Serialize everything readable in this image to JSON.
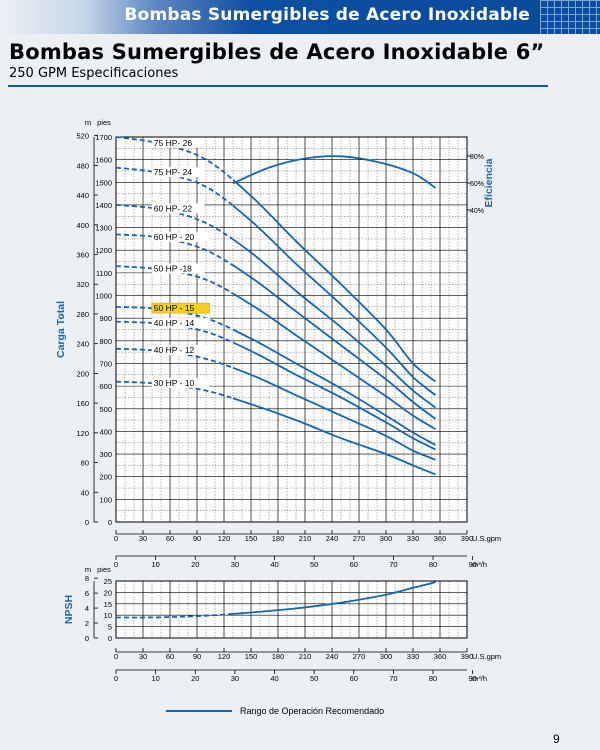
{
  "header": {
    "banner": "Bombas Sumergibles de Acero Inoxidable",
    "title": "Bombas Sumergibles de Acero Inoxidable 6”",
    "subtitle": "250 GPM Especificaciones"
  },
  "page_number": "9",
  "legend_label": "Rango de Operación Recomendado",
  "colors": {
    "curve": "#1565b0",
    "grid": "#000000",
    "highlight": "#f5d020",
    "label_blue": "#1565b0"
  },
  "chart_data": [
    {
      "type": "line",
      "ylabel": "Carga Total",
      "y2label": "Eficiencia",
      "unit_left_m": "m",
      "unit_left_ft": "pies",
      "x_unit_gpm": "U.S.gpm",
      "x_unit_m3h": "m³/h",
      "xlim": [
        0,
        390
      ],
      "ylim_ft": [
        0,
        1700
      ],
      "x_ticks_gpm": [
        "0",
        "30",
        "60",
        "90",
        "120",
        "150",
        "180",
        "210",
        "240",
        "270",
        "300",
        "330",
        "360",
        "390"
      ],
      "x_ticks_m3h": [
        "0",
        "10",
        "20",
        "30",
        "40",
        "50",
        "60",
        "70",
        "80",
        "90"
      ],
      "y_ticks_ft": [
        "0",
        "100",
        "200",
        "300",
        "400",
        "500",
        "600",
        "700",
        "800",
        "900",
        "1000",
        "1100",
        "1200",
        "1300",
        "1400",
        "1500",
        "1600",
        "1700"
      ],
      "y_ticks_m": [
        "0",
        "40",
        "80",
        "120",
        "160",
        "200",
        "240",
        "280",
        "320",
        "360",
        "400",
        "440",
        "480",
        "520"
      ],
      "efficiency_ticks": [
        "80%",
        "60%",
        "40%"
      ],
      "series": [
        {
          "name": "75 HP- 26",
          "x": [
            0,
            50,
            100,
            150,
            200,
            250,
            300,
            330,
            355
          ],
          "y": [
            1700,
            1670,
            1600,
            1440,
            1240,
            1050,
            850,
            700,
            620
          ],
          "solid_from": 130
        },
        {
          "name": "75 HP- 24",
          "x": [
            0,
            50,
            100,
            150,
            200,
            250,
            300,
            330,
            355
          ],
          "y": [
            1565,
            1540,
            1480,
            1330,
            1140,
            960,
            770,
            640,
            560
          ],
          "solid_from": 130
        },
        {
          "name": "60 HP- 22",
          "x": [
            0,
            50,
            100,
            150,
            200,
            250,
            300,
            330,
            355
          ],
          "y": [
            1400,
            1380,
            1320,
            1190,
            1020,
            860,
            690,
            580,
            505
          ],
          "solid_from": 130
        },
        {
          "name": "60 HP - 20",
          "x": [
            0,
            50,
            100,
            150,
            200,
            250,
            300,
            330,
            355
          ],
          "y": [
            1270,
            1255,
            1200,
            1080,
            930,
            780,
            630,
            530,
            455
          ],
          "solid_from": 130
        },
        {
          "name": "50 HP -18",
          "x": [
            0,
            50,
            100,
            150,
            200,
            250,
            300,
            330,
            355
          ],
          "y": [
            1130,
            1115,
            1070,
            960,
            825,
            690,
            555,
            470,
            410
          ],
          "solid_from": 130
        },
        {
          "name": "50 HP - 15",
          "x": [
            0,
            50,
            100,
            150,
            200,
            250,
            300,
            330,
            355
          ],
          "y": [
            950,
            940,
            900,
            810,
            700,
            590,
            470,
            395,
            340
          ],
          "solid_from": 130
        },
        {
          "name": "40 HP - 14",
          "x": [
            0,
            50,
            100,
            150,
            200,
            250,
            300,
            330,
            355
          ],
          "y": [
            885,
            875,
            840,
            755,
            650,
            550,
            440,
            370,
            320
          ],
          "solid_from": 130
        },
        {
          "name": "40 HP - 12",
          "x": [
            0,
            50,
            100,
            150,
            200,
            250,
            300,
            330,
            355
          ],
          "y": [
            765,
            755,
            720,
            650,
            560,
            470,
            380,
            315,
            275
          ],
          "solid_from": 130
        },
        {
          "name": "30 HP - 10",
          "x": [
            0,
            50,
            100,
            150,
            200,
            250,
            300,
            330,
            355
          ],
          "y": [
            620,
            610,
            580,
            520,
            450,
            370,
            300,
            250,
            210
          ],
          "solid_from": 130
        }
      ],
      "highlight_series": "50 HP - 15",
      "efficiency_curve": {
        "x": [
          130,
          170,
          210,
          250,
          290,
          330,
          355
        ],
        "y": [
          1495,
          1565,
          1605,
          1615,
          1590,
          1540,
          1475
        ]
      }
    },
    {
      "type": "line",
      "ylabel": "NPSH",
      "unit_left_m": "m",
      "unit_left_ft": "pies",
      "x_unit_gpm": "U.S.gpm",
      "x_unit_m3h": "m³/h",
      "xlim": [
        0,
        390
      ],
      "ylim_ft": [
        0,
        25
      ],
      "y_ticks_ft": [
        "0",
        "5",
        "10",
        "15",
        "20",
        "25"
      ],
      "y_ticks_m": [
        "0",
        "2",
        "4",
        "6",
        "8"
      ],
      "x_ticks_gpm": [
        "0",
        "30",
        "60",
        "90",
        "120",
        "150",
        "180",
        "210",
        "240",
        "270",
        "300",
        "330",
        "360",
        "390"
      ],
      "x_ticks_m3h": [
        "0",
        "10",
        "20",
        "30",
        "40",
        "50",
        "60",
        "70",
        "80",
        "90"
      ],
      "series": [
        {
          "name": "NPSH",
          "x": [
            0,
            50,
            100,
            150,
            200,
            250,
            300,
            330,
            355
          ],
          "y": [
            9,
            9.1,
            9.8,
            11.2,
            13.0,
            15.5,
            19.0,
            22.0,
            24.5
          ],
          "solid_from": 130
        }
      ]
    }
  ]
}
